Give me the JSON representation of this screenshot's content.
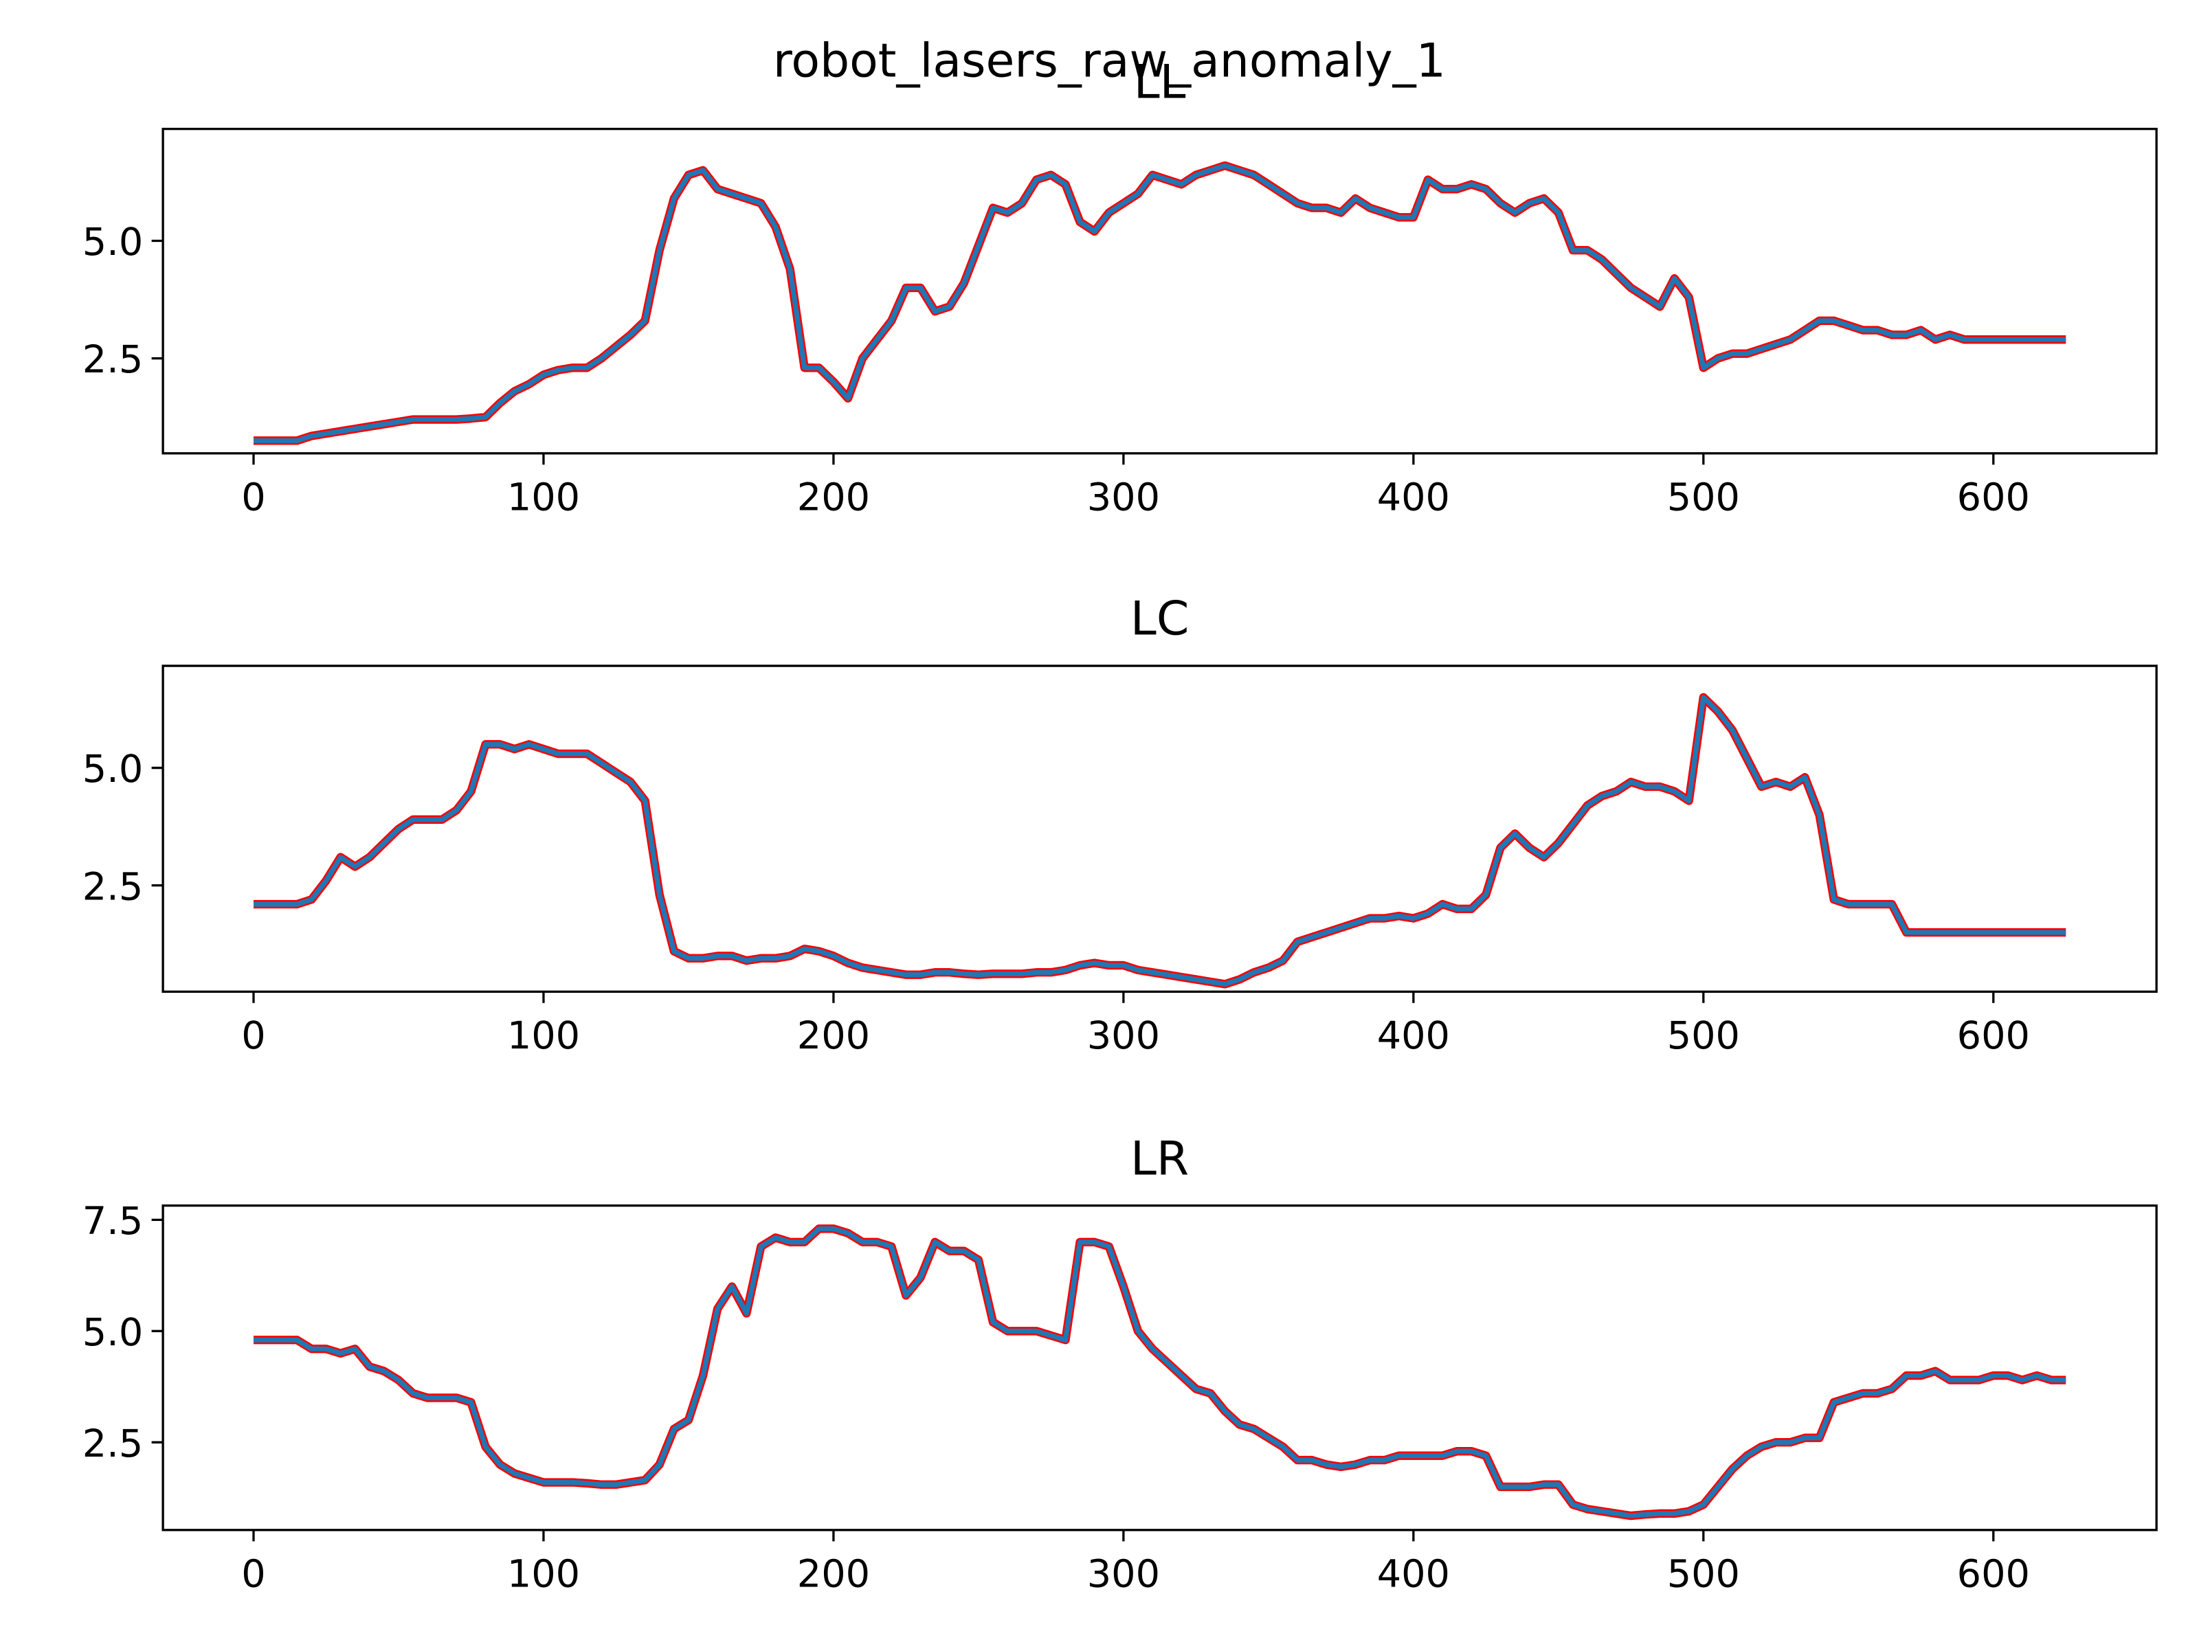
{
  "title": "robot_lasers_raw_anomaly_1",
  "chart_data": [
    {
      "type": "line",
      "title": "LL",
      "edge_color": "red",
      "x": [
        0,
        5,
        10,
        15,
        20,
        25,
        30,
        35,
        40,
        45,
        50,
        55,
        60,
        65,
        70,
        75,
        80,
        85,
        90,
        95,
        100,
        105,
        110,
        115,
        120,
        125,
        130,
        135,
        140,
        145,
        150,
        155,
        160,
        165,
        170,
        175,
        180,
        185,
        190,
        195,
        200,
        205,
        210,
        215,
        220,
        225,
        230,
        235,
        240,
        245,
        250,
        255,
        260,
        265,
        270,
        275,
        280,
        285,
        290,
        295,
        300,
        305,
        310,
        315,
        320,
        325,
        330,
        335,
        340,
        345,
        350,
        355,
        360,
        365,
        370,
        375,
        380,
        385,
        390,
        395,
        400,
        405,
        410,
        415,
        420,
        425,
        430,
        435,
        440,
        445,
        450,
        455,
        460,
        465,
        470,
        475,
        480,
        485,
        490,
        495,
        500,
        505,
        510,
        515,
        520,
        525,
        530,
        535,
        540,
        545,
        550,
        555,
        560,
        565,
        570,
        575,
        580,
        585,
        590,
        595,
        600,
        605,
        610,
        615,
        620,
        625
      ],
      "series": [
        {
          "color": "#1f77b4",
          "values": [
            0.75,
            0.75,
            0.75,
            0.75,
            0.85,
            0.9,
            0.95,
            1.0,
            1.05,
            1.1,
            1.15,
            1.2,
            1.2,
            1.2,
            1.2,
            1.22,
            1.25,
            1.55,
            1.8,
            1.95,
            2.15,
            2.25,
            2.3,
            2.3,
            2.5,
            2.75,
            3.0,
            3.3,
            4.8,
            5.9,
            6.4,
            6.5,
            6.1,
            6.0,
            5.9,
            5.8,
            5.3,
            4.4,
            2.3,
            2.3,
            2.0,
            1.65,
            2.5,
            2.9,
            3.3,
            4.0,
            4.0,
            3.5,
            3.6,
            4.1,
            4.9,
            5.7,
            5.6,
            5.8,
            6.3,
            6.4,
            6.2,
            5.4,
            5.2,
            5.6,
            5.8,
            6.0,
            6.4,
            6.3,
            6.2,
            6.4,
            6.5,
            6.6,
            6.5,
            6.4,
            6.2,
            6.0,
            5.8,
            5.7,
            5.7,
            5.6,
            5.9,
            5.7,
            5.6,
            5.5,
            5.5,
            6.3,
            6.1,
            6.1,
            6.2,
            6.1,
            5.8,
            5.6,
            5.8,
            5.9,
            5.6,
            4.8,
            4.8,
            4.6,
            4.3,
            4.0,
            3.8,
            3.6,
            4.2,
            3.8,
            2.3,
            2.5,
            2.6,
            2.6,
            2.7,
            2.8,
            2.9,
            3.1,
            3.3,
            3.3,
            3.2,
            3.1,
            3.1,
            3.0,
            3.0,
            3.1,
            2.9,
            3.0,
            2.9,
            2.9,
            2.9,
            2.9,
            2.9,
            2.9,
            2.9,
            2.9
          ]
        }
      ],
      "xlim": [
        -31.25,
        656.25
      ],
      "xticks": [
        0,
        100,
        200,
        300,
        400,
        500,
        600
      ],
      "ylim": [
        0.48,
        7.38
      ],
      "yticks": [
        2.5,
        {
          "value": 5,
          "label": "5.0"
        }
      ]
    },
    {
      "type": "line",
      "title": "LC",
      "edge_color": "red",
      "x": [
        0,
        5,
        10,
        15,
        20,
        25,
        30,
        35,
        40,
        45,
        50,
        55,
        60,
        65,
        70,
        75,
        80,
        85,
        90,
        95,
        100,
        105,
        110,
        115,
        120,
        125,
        130,
        135,
        140,
        145,
        150,
        155,
        160,
        165,
        170,
        175,
        180,
        185,
        190,
        195,
        200,
        205,
        210,
        215,
        220,
        225,
        230,
        235,
        240,
        245,
        250,
        255,
        260,
        265,
        270,
        275,
        280,
        285,
        290,
        295,
        300,
        305,
        310,
        315,
        320,
        325,
        330,
        335,
        340,
        345,
        350,
        355,
        360,
        365,
        370,
        375,
        380,
        385,
        390,
        395,
        400,
        405,
        410,
        415,
        420,
        425,
        430,
        435,
        440,
        445,
        450,
        455,
        460,
        465,
        470,
        475,
        480,
        485,
        490,
        495,
        500,
        505,
        510,
        515,
        520,
        525,
        530,
        535,
        540,
        545,
        550,
        555,
        560,
        565,
        570,
        575,
        580,
        585,
        590,
        595,
        600,
        605,
        610,
        615,
        620,
        625
      ],
      "series": [
        {
          "color": "#1f77b4",
          "values": [
            2.1,
            2.1,
            2.1,
            2.1,
            2.2,
            2.6,
            3.1,
            2.9,
            3.1,
            3.4,
            3.7,
            3.9,
            3.9,
            3.9,
            4.1,
            4.5,
            5.5,
            5.5,
            5.4,
            5.5,
            5.4,
            5.3,
            5.3,
            5.3,
            5.1,
            4.9,
            4.7,
            4.3,
            2.3,
            1.1,
            0.95,
            0.95,
            1.0,
            1.0,
            0.9,
            0.95,
            0.95,
            1.0,
            1.15,
            1.1,
            1.0,
            0.85,
            0.75,
            0.7,
            0.65,
            0.6,
            0.6,
            0.65,
            0.65,
            0.62,
            0.6,
            0.62,
            0.62,
            0.62,
            0.65,
            0.65,
            0.7,
            0.8,
            0.85,
            0.8,
            0.8,
            0.7,
            0.65,
            0.6,
            0.55,
            0.5,
            0.45,
            0.4,
            0.5,
            0.65,
            0.75,
            0.9,
            1.3,
            1.4,
            1.5,
            1.6,
            1.7,
            1.8,
            1.8,
            1.85,
            1.8,
            1.9,
            2.1,
            2.0,
            2.0,
            2.3,
            3.3,
            3.6,
            3.3,
            3.1,
            3.4,
            3.8,
            4.2,
            4.4,
            4.5,
            4.7,
            4.6,
            4.6,
            4.5,
            4.3,
            6.5,
            6.2,
            5.8,
            5.2,
            4.6,
            4.7,
            4.6,
            4.8,
            4.0,
            2.2,
            2.1,
            2.1,
            2.1,
            2.1,
            1.5,
            1.5,
            1.5,
            1.5,
            1.5,
            1.5,
            1.5,
            1.5,
            1.5,
            1.5,
            1.5,
            1.5
          ]
        }
      ],
      "xlim": [
        -31.25,
        656.25
      ],
      "xticks": [
        0,
        100,
        200,
        300,
        400,
        500,
        600
      ],
      "ylim": [
        0.24,
        7.17
      ],
      "yticks": [
        2.5,
        {
          "value": 5,
          "label": "5.0"
        }
      ]
    },
    {
      "type": "line",
      "title": "LR",
      "edge_color": "red",
      "x": [
        0,
        5,
        10,
        15,
        20,
        25,
        30,
        35,
        40,
        45,
        50,
        55,
        60,
        65,
        70,
        75,
        80,
        85,
        90,
        95,
        100,
        105,
        110,
        115,
        120,
        125,
        130,
        135,
        140,
        145,
        150,
        155,
        160,
        165,
        170,
        175,
        180,
        185,
        190,
        195,
        200,
        205,
        210,
        215,
        220,
        225,
        230,
        235,
        240,
        245,
        250,
        255,
        260,
        265,
        270,
        275,
        280,
        285,
        290,
        295,
        300,
        305,
        310,
        315,
        320,
        325,
        330,
        335,
        340,
        345,
        350,
        355,
        360,
        365,
        370,
        375,
        380,
        385,
        390,
        395,
        400,
        405,
        410,
        415,
        420,
        425,
        430,
        435,
        440,
        445,
        450,
        455,
        460,
        465,
        470,
        475,
        480,
        485,
        490,
        495,
        500,
        505,
        510,
        515,
        520,
        525,
        530,
        535,
        540,
        545,
        550,
        555,
        560,
        565,
        570,
        575,
        580,
        585,
        590,
        595,
        600,
        605,
        610,
        615,
        620,
        625
      ],
      "series": [
        {
          "color": "#1f77b4",
          "values": [
            4.8,
            4.8,
            4.8,
            4.8,
            4.6,
            4.6,
            4.5,
            4.6,
            4.2,
            4.1,
            3.9,
            3.6,
            3.5,
            3.5,
            3.5,
            3.4,
            2.4,
            2.0,
            1.8,
            1.7,
            1.6,
            1.6,
            1.6,
            1.58,
            1.55,
            1.55,
            1.6,
            1.65,
            2.0,
            2.8,
            3.0,
            4.0,
            5.5,
            6.0,
            5.4,
            6.9,
            7.1,
            7.0,
            7.0,
            7.3,
            7.3,
            7.2,
            7.0,
            7.0,
            6.9,
            5.8,
            6.2,
            7.0,
            6.8,
            6.8,
            6.6,
            5.2,
            5.0,
            5.0,
            5.0,
            4.9,
            4.8,
            7.0,
            7.0,
            6.9,
            6.0,
            5.0,
            4.6,
            4.3,
            4.0,
            3.7,
            3.6,
            3.2,
            2.9,
            2.8,
            2.6,
            2.4,
            2.1,
            2.1,
            2.0,
            1.95,
            2.0,
            2.1,
            2.1,
            2.2,
            2.2,
            2.2,
            2.2,
            2.3,
            2.3,
            2.2,
            1.5,
            1.5,
            1.5,
            1.55,
            1.55,
            1.1,
            1.0,
            0.95,
            0.9,
            0.85,
            0.88,
            0.9,
            0.9,
            0.95,
            1.1,
            1.5,
            1.9,
            2.2,
            2.4,
            2.5,
            2.5,
            2.6,
            2.6,
            3.4,
            3.5,
            3.6,
            3.6,
            3.7,
            4.0,
            4.0,
            4.1,
            3.9,
            3.9,
            3.9,
            4.0,
            4.0,
            3.9,
            4.0,
            3.9,
            3.9
          ]
        }
      ],
      "xlim": [
        -31.25,
        656.25
      ],
      "xticks": [
        0,
        100,
        200,
        300,
        400,
        500,
        600
      ],
      "ylim": [
        0.53,
        7.82
      ],
      "yticks": [
        2.5,
        {
          "value": 5,
          "label": "5.0"
        },
        7.5
      ]
    }
  ]
}
